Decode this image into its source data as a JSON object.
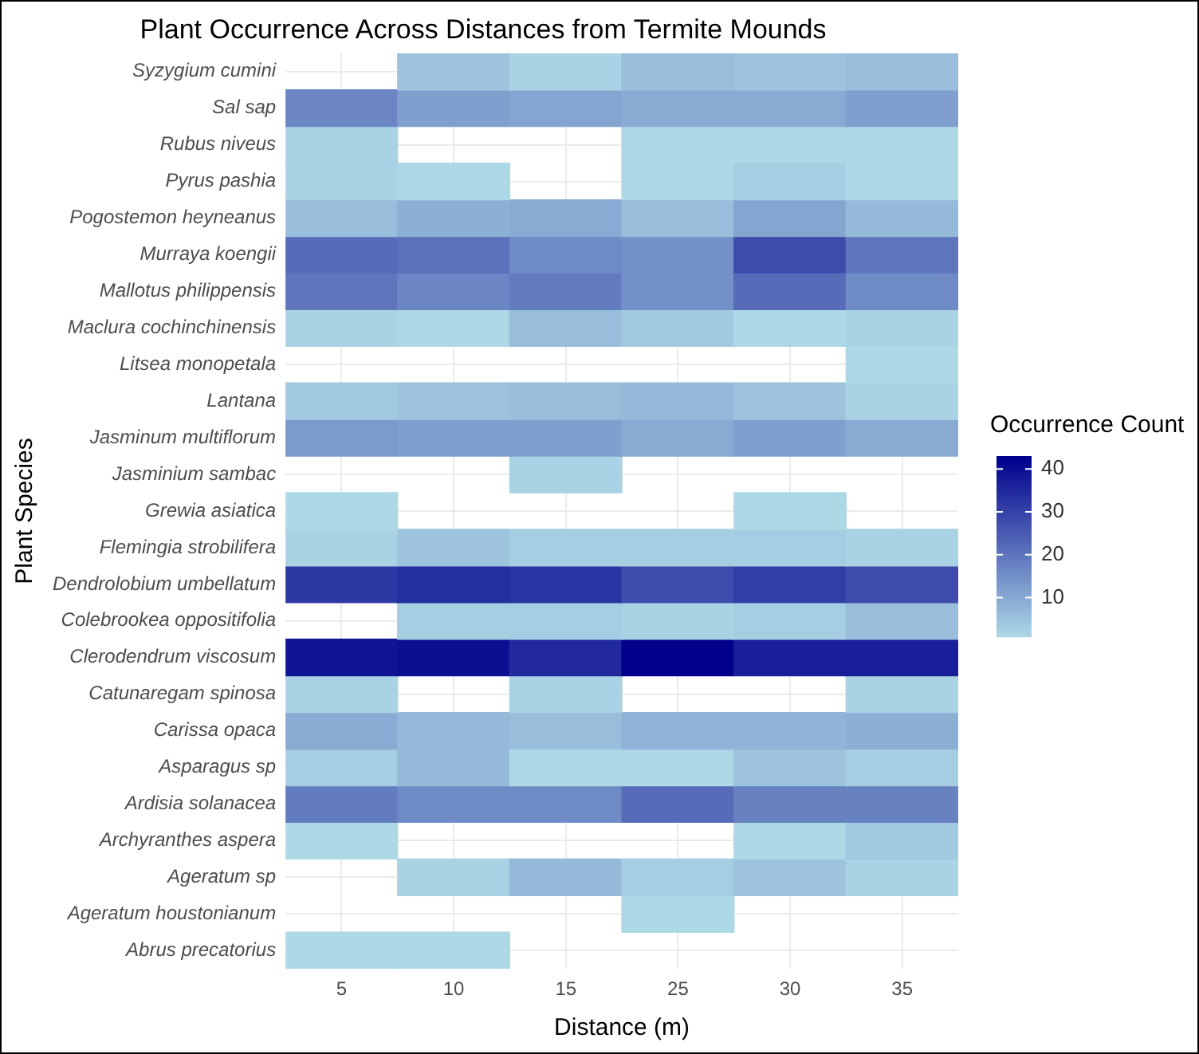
{
  "chart_data": {
    "type": "heatmap",
    "title": "Plant Occurrence Across Distances from Termite Mounds",
    "xlabel": "Distance (m)",
    "ylabel": "Plant Species",
    "clabel": "Occurrence Count",
    "categories": [
      "5",
      "10",
      "15",
      "25",
      "30",
      "35"
    ],
    "y_categories": [
      "Syzygium cumini",
      "Sal sap",
      "Rubus niveus",
      "Pyrus pashia",
      "Pogostemon heyneanus",
      "Murraya koengii",
      "Mallotus philippensis",
      "Maclura cochinchinensis",
      "Litsea monopetala",
      "Lantana",
      "Jasminum multiflorum",
      "Jasminium sambac",
      "Grewia asiatica",
      "Flemingia strobilifera",
      "Dendrolobium umbellatum",
      "Colebrookea oppositifolia",
      "Clerodendrum viscosum",
      "Catunaregam spinosa",
      "Carissa opaca",
      "Asparagus sp",
      "Ardisia solanacea",
      "Archyranthes aspera",
      "Ageratum sp",
      "Ageratum houstonianum",
      "Abrus precatorius"
    ],
    "cells": [
      [
        null,
        5,
        2,
        6,
        5,
        6
      ],
      [
        17,
        12,
        11,
        10,
        10,
        12
      ],
      [
        2,
        null,
        null,
        1,
        1,
        1
      ],
      [
        2,
        1,
        null,
        1,
        3,
        1
      ],
      [
        6,
        9,
        10,
        6,
        11,
        7
      ],
      [
        22,
        21,
        16,
        15,
        28,
        20
      ],
      [
        20,
        17,
        19,
        15,
        22,
        16
      ],
      [
        2,
        1,
        6,
        4,
        1,
        2
      ],
      [
        null,
        null,
        null,
        null,
        null,
        1
      ],
      [
        4,
        5,
        6,
        7,
        5,
        2
      ],
      [
        13,
        12,
        12,
        10,
        12,
        10
      ],
      [
        null,
        null,
        2,
        null,
        null,
        null
      ],
      [
        1,
        null,
        null,
        null,
        1,
        null
      ],
      [
        2,
        5,
        3,
        3,
        3,
        2
      ],
      [
        32,
        34,
        33,
        28,
        31,
        28
      ],
      [
        null,
        3,
        3,
        2,
        3,
        6
      ],
      [
        39,
        40,
        35,
        43,
        37,
        37
      ],
      [
        2,
        null,
        2,
        null,
        null,
        2
      ],
      [
        10,
        7,
        6,
        8,
        8,
        9
      ],
      [
        3,
        7,
        1,
        1,
        5,
        3
      ],
      [
        19,
        16,
        16,
        22,
        18,
        18
      ],
      [
        1,
        null,
        null,
        null,
        1,
        4
      ],
      [
        null,
        2,
        7,
        3,
        5,
        2
      ],
      [
        null,
        null,
        null,
        1,
        null,
        null
      ],
      [
        1,
        1,
        null,
        null,
        null,
        null
      ]
    ],
    "clim": [
      1,
      43
    ],
    "cticks": [
      10,
      20,
      30,
      40
    ],
    "grid": true
  }
}
